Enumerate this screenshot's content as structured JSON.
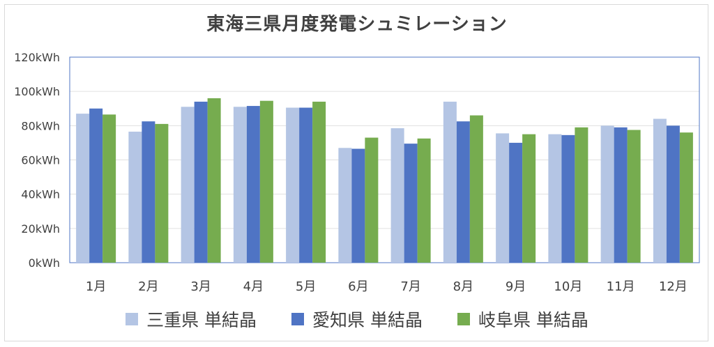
{
  "chart_data": {
    "type": "bar",
    "title": "東海三県月度発電シュミレーション",
    "categories": [
      "1月",
      "2月",
      "3月",
      "4月",
      "5月",
      "6月",
      "7月",
      "8月",
      "9月",
      "10月",
      "11月",
      "12月"
    ],
    "ylim": [
      0,
      120
    ],
    "ytick_values": [
      0,
      20,
      40,
      60,
      80,
      100,
      120
    ],
    "ytick_labels": [
      "0kWh",
      "20kWh",
      "40kWh",
      "60kWh",
      "80kWh",
      "100kWh",
      "120kWh"
    ],
    "grid": true,
    "legend_position": "bottom",
    "series": [
      {
        "name": "三重県 単結晶",
        "color": "#b4c5e4",
        "values": [
          87,
          76.5,
          91,
          91,
          90.5,
          67,
          78.5,
          94,
          75.5,
          75,
          80,
          84
        ]
      },
      {
        "name": "愛知県 単結晶",
        "color": "#4f74c4",
        "values": [
          90,
          82.5,
          94,
          91.5,
          90.5,
          66.5,
          69.5,
          82.5,
          70,
          74.5,
          79,
          80
        ]
      },
      {
        "name": "岐阜県 単結晶",
        "color": "#76ac4f",
        "values": [
          86.5,
          81,
          96,
          94.5,
          94,
          73,
          72.5,
          86,
          75,
          79,
          77.5,
          76
        ]
      }
    ]
  }
}
